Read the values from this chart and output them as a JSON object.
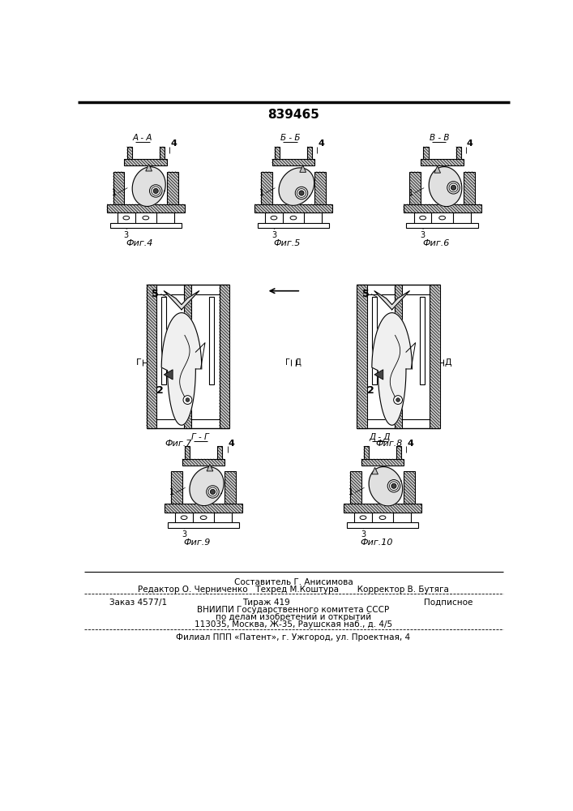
{
  "patent_number": "839465",
  "bg_color": "#ffffff",
  "text_color": "#000000",
  "footer_line1": "Составитель Г. Анисимова",
  "footer_line2": "Редактор О. Черниченко   Техред М.Коштура       Корректор В. Бутяга",
  "footer_line3a": "Заказ 4577/1",
  "footer_line3b": "Тираж 419",
  "footer_line3c": "Подписное",
  "footer_line4": "ВНИИПИ Государственного комитета СССР",
  "footer_line5": "по делам изобретений и открытий",
  "footer_line6": "113035, Москва, Ж-35, Раушская наб., д. 4/5",
  "footer_line7": "Филиал ППП «Патент», г. Ужгород, ул. Проектная, 4"
}
